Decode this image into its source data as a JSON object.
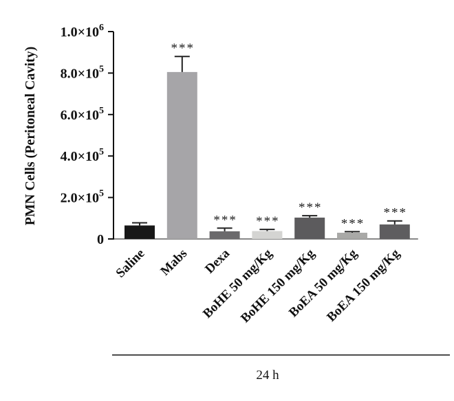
{
  "chart_data": {
    "type": "bar",
    "title": "",
    "ylabel": "PMN Cells (Peritoneal Cavity)",
    "xlabel": "24 h",
    "ylim": [
      0,
      1000000
    ],
    "yticks": [
      {
        "value": 0,
        "mantissa": "0",
        "exp": ""
      },
      {
        "value": 200000,
        "mantissa": "2.0×10",
        "exp": "5"
      },
      {
        "value": 400000,
        "mantissa": "4.0×10",
        "exp": "5"
      },
      {
        "value": 600000,
        "mantissa": "6.0×10",
        "exp": "5"
      },
      {
        "value": 800000,
        "mantissa": "8.0×10",
        "exp": "5"
      },
      {
        "value": 1000000,
        "mantissa": "1.0×10",
        "exp": "6"
      }
    ],
    "categories": [
      "Saline",
      "Mabs",
      "Dexa",
      "BoHE 50 mg/Kg",
      "BoHE 150 mg/Kg",
      "BoEA 50 mg/Kg",
      "BoEA 150 mg/Kg"
    ],
    "values": [
      65000,
      805000,
      37000,
      38000,
      103000,
      30000,
      70000
    ],
    "errors": [
      13000,
      75000,
      15000,
      8000,
      9000,
      5000,
      17000
    ],
    "significance": [
      "",
      "***",
      "***",
      "***",
      "***",
      "***",
      "***"
    ],
    "colors": [
      "#171717",
      "#a6a5a8",
      "#6b6a6c",
      "#d4d4d2",
      "#5c5b5d",
      "#a9a9a7",
      "#5e5d5f"
    ],
    "grid": false,
    "legend": "none"
  }
}
